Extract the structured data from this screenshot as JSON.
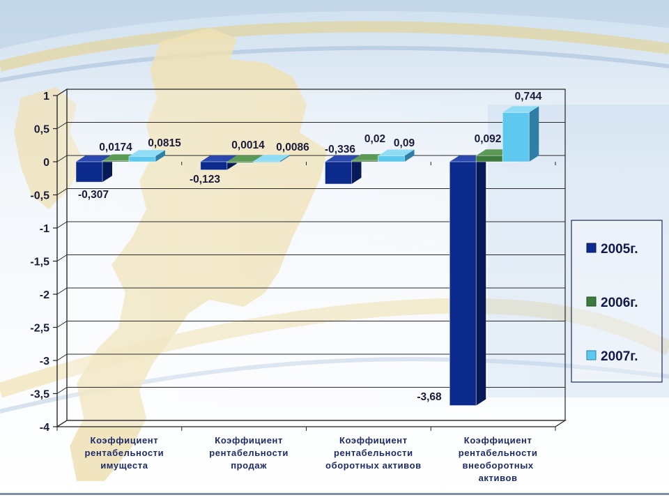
{
  "chart_data": {
    "type": "bar",
    "categories": [
      [
        "Коэффициент",
        "рентабельности",
        "имущеста"
      ],
      [
        "Коэффициент",
        "рентабельности",
        "продаж"
      ],
      [
        "Коэффициент",
        "рентабельности",
        "оборотных активов"
      ],
      [
        "Коэффициент",
        "рентабельности",
        "внеоборотных",
        "активов"
      ]
    ],
    "series": [
      {
        "name": "2005г.",
        "values": [
          -0.307,
          -0.123,
          -0.336,
          -3.68
        ],
        "labels": [
          "-0,307",
          "-0,123",
          "-0,336",
          "-3,68"
        ],
        "color": "#0b2a8c",
        "side_color": "#061a57",
        "top_color": "#2a48b0"
      },
      {
        "name": "2006г.",
        "values": [
          0.0174,
          0.0014,
          0.02,
          0.092
        ],
        "labels": [
          "0,0174",
          "0,0014",
          "0,02",
          "0,092"
        ],
        "color": "#3d7a3d",
        "side_color": "#1f4d22",
        "top_color": "#5a9a55"
      },
      {
        "name": "2007г.",
        "values": [
          0.0815,
          0.0086,
          0.09,
          0.744
        ],
        "labels": [
          "0,0815",
          "0,0086",
          "0,09",
          "0,744"
        ],
        "color": "#5ec8ee",
        "side_color": "#2e7ea6",
        "top_color": "#8fdcf6"
      }
    ],
    "ylim": [
      -4,
      1
    ],
    "yticks": [
      1,
      0.5,
      0,
      -0.5,
      -1,
      -1.5,
      -2,
      -2.5,
      -3,
      -3.5,
      -4
    ],
    "ytick_labels": [
      "1",
      "0,5",
      "0",
      "-0,5",
      "-1",
      "-1,5",
      "-2",
      "-2,5",
      "-3",
      "-3,5",
      "-4"
    ],
    "grid": true,
    "legend_position": "right",
    "title": "",
    "xlabel": "",
    "ylabel": ""
  }
}
